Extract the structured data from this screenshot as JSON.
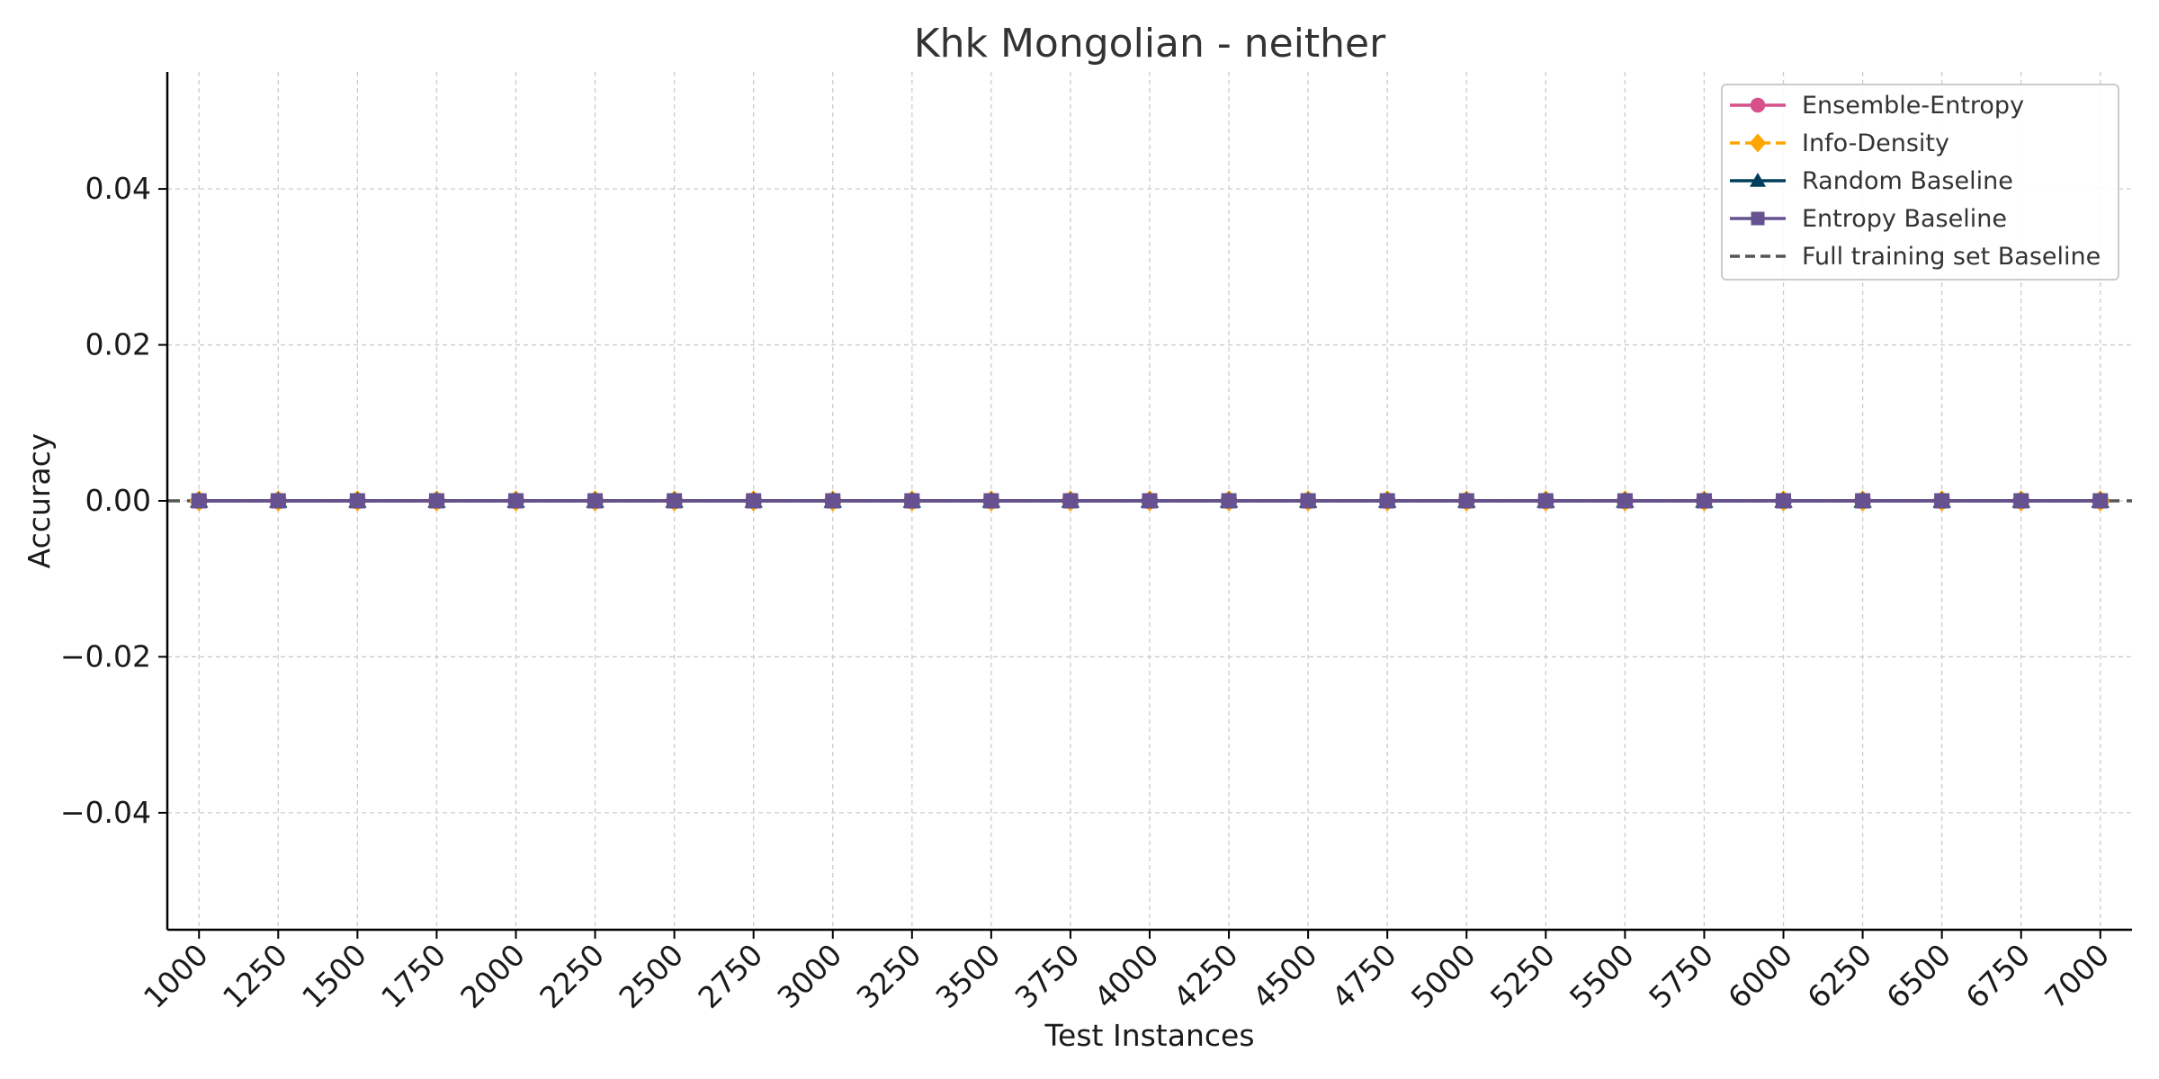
{
  "chart_data": {
    "type": "line",
    "title": "Khk Mongolian - neither",
    "xlabel": "Test Instances",
    "ylabel": "Accuracy",
    "x": [
      1000,
      1250,
      1500,
      1750,
      2000,
      2250,
      2500,
      2750,
      3000,
      3250,
      3500,
      3750,
      4000,
      4250,
      4500,
      4750,
      5000,
      5250,
      5500,
      5750,
      6000,
      6250,
      6500,
      6750,
      7000
    ],
    "x_tick_labels": [
      "1000",
      "1250",
      "1500",
      "1750",
      "2000",
      "2250",
      "2500",
      "2750",
      "3000",
      "3250",
      "3500",
      "3750",
      "4000",
      "4250",
      "4500",
      "4750",
      "5000",
      "5250",
      "5500",
      "5750",
      "6000",
      "6250",
      "6500",
      "6750",
      "7000"
    ],
    "ylim": [
      -0.055,
      0.055
    ],
    "y_ticks": [
      -0.04,
      -0.02,
      0.0,
      0.02,
      0.04
    ],
    "y_tick_labels": [
      "−0.04",
      "−0.02",
      "0.00",
      "0.02",
      "0.04"
    ],
    "grid": true,
    "legend_position": "top-right",
    "series": [
      {
        "name": "Ensemble-Entropy",
        "color": "#d6508a",
        "marker": "circle",
        "dash": "solid",
        "values": [
          0,
          0,
          0,
          0,
          0,
          0,
          0,
          0,
          0,
          0,
          0,
          0,
          0,
          0,
          0,
          0,
          0,
          0,
          0,
          0,
          0,
          0,
          0,
          0,
          0
        ]
      },
      {
        "name": "Info-Density",
        "color": "#ffa600",
        "marker": "diamond",
        "dash": "dashed",
        "values": [
          0,
          0,
          0,
          0,
          0,
          0,
          0,
          0,
          0,
          0,
          0,
          0,
          0,
          0,
          0,
          0,
          0,
          0,
          0,
          0,
          0,
          0,
          0,
          0,
          0
        ]
      },
      {
        "name": "Random Baseline",
        "color": "#003f5c",
        "marker": "triangle",
        "dash": "solid",
        "values": [
          0,
          0,
          0,
          0,
          0,
          0,
          0,
          0,
          0,
          0,
          0,
          0,
          0,
          0,
          0,
          0,
          0,
          0,
          0,
          0,
          0,
          0,
          0,
          0,
          0
        ]
      },
      {
        "name": "Entropy Baseline",
        "color": "#665191",
        "marker": "square",
        "dash": "solid",
        "values": [
          0,
          0,
          0,
          0,
          0,
          0,
          0,
          0,
          0,
          0,
          0,
          0,
          0,
          0,
          0,
          0,
          0,
          0,
          0,
          0,
          0,
          0,
          0,
          0,
          0
        ]
      }
    ],
    "reference_lines": [
      {
        "name": "Full training set Baseline",
        "y": 0.0,
        "color": "#555555",
        "dash": "dashed"
      }
    ]
  }
}
